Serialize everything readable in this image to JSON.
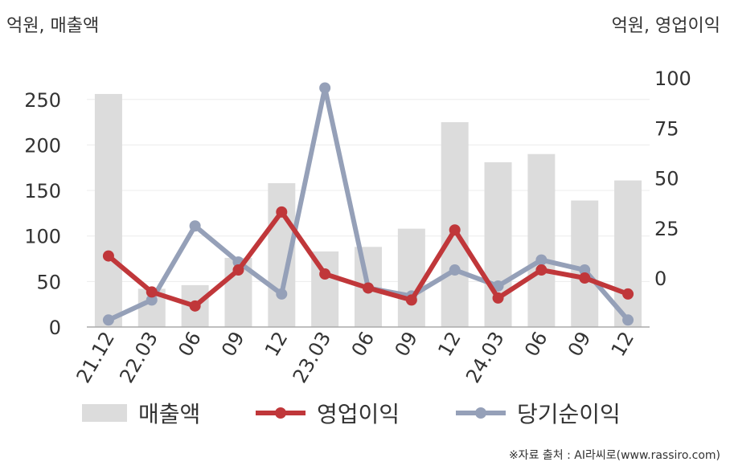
{
  "header": {
    "left_unit": "억원, 매출액",
    "right_unit": "억원, 영업이익"
  },
  "legend": {
    "revenue": "매출액",
    "operating_profit": "영업이익",
    "net_profit": "당기순이익"
  },
  "source": "※자료 출처 : AI라씨로(www.rassiro.com)",
  "colors": {
    "bar": "#dcdcdc",
    "operating_profit": "#c0373a",
    "net_profit": "#95a0b8",
    "axis": "#aaaaaa",
    "grid": "#ececec"
  },
  "chart_data": {
    "type": "bar+line",
    "categories": [
      "21.12",
      "22.03",
      "06",
      "09",
      "12",
      "23.03",
      "06",
      "09",
      "12",
      "24.03",
      "06",
      "09",
      "12"
    ],
    "left_axis": {
      "label": "억원, 매출액",
      "ticks": [
        0,
        50,
        100,
        150,
        200,
        250
      ],
      "ylim": [
        0,
        275
      ]
    },
    "right_axis": {
      "label": "억원, 영업이익",
      "ticks": [
        0,
        25,
        50,
        75,
        100
      ],
      "ylim": [
        -25,
        100
      ]
    },
    "series": [
      {
        "name": "매출액",
        "type": "bar",
        "axis": "left",
        "values": [
          256,
          42,
          46,
          76,
          158,
          83,
          88,
          108,
          225,
          181,
          190,
          139,
          161
        ]
      },
      {
        "name": "영업이익",
        "type": "line",
        "axis": "right",
        "values": [
          11,
          -7,
          -14,
          4,
          33,
          2,
          -5,
          -11,
          24,
          -10,
          4,
          0,
          -8
        ]
      },
      {
        "name": "당기순이익",
        "type": "line",
        "axis": "right",
        "values": [
          -21,
          -11,
          26,
          8,
          -8,
          95,
          -5,
          -9,
          4,
          -4,
          9,
          4,
          -21
        ]
      }
    ],
    "grid": true,
    "legend_position": "bottom"
  }
}
